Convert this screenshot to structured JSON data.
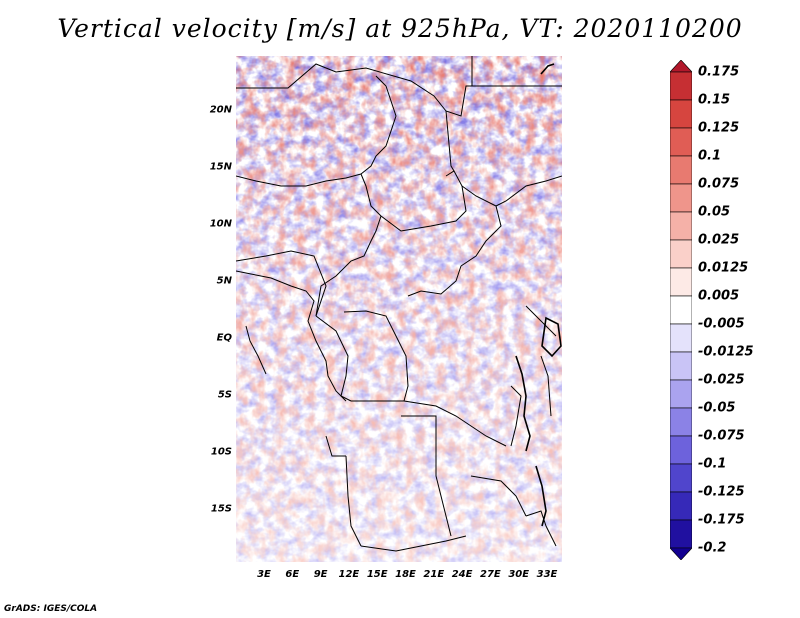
{
  "title": "Vertical velocity [m/s] at 925hPa, VT: 2020110200",
  "credit": "GrADS: IGES/COLA",
  "lat_labels": [
    "20N",
    "15N",
    "10N",
    "5N",
    "EQ",
    "5S",
    "10S",
    "15S"
  ],
  "lon_labels": [
    "3E",
    "6E",
    "9E",
    "12E",
    "15E",
    "18E",
    "21E",
    "24E",
    "27E",
    "30E",
    "33E"
  ],
  "colorbar": {
    "labels": [
      "0.175",
      "0.15",
      "0.125",
      "0.1",
      "0.075",
      "0.05",
      "0.025",
      "0.0125",
      "0.005",
      "-0.005",
      "-0.0125",
      "-0.025",
      "-0.05",
      "-0.075",
      "-0.1",
      "-0.125",
      "-0.175",
      "-0.2"
    ],
    "colors": [
      "#b2182b",
      "#c62f33",
      "#d6453f",
      "#e05d55",
      "#e87a70",
      "#ef958b",
      "#f5b1a8",
      "#fad0c9",
      "#fdeae6",
      "#ffffff",
      "#e4e2fb",
      "#c9c4f6",
      "#aaa3ef",
      "#8b82e6",
      "#6d62dc",
      "#5045cc",
      "#3629b8",
      "#2010a0",
      "#120090"
    ]
  }
}
